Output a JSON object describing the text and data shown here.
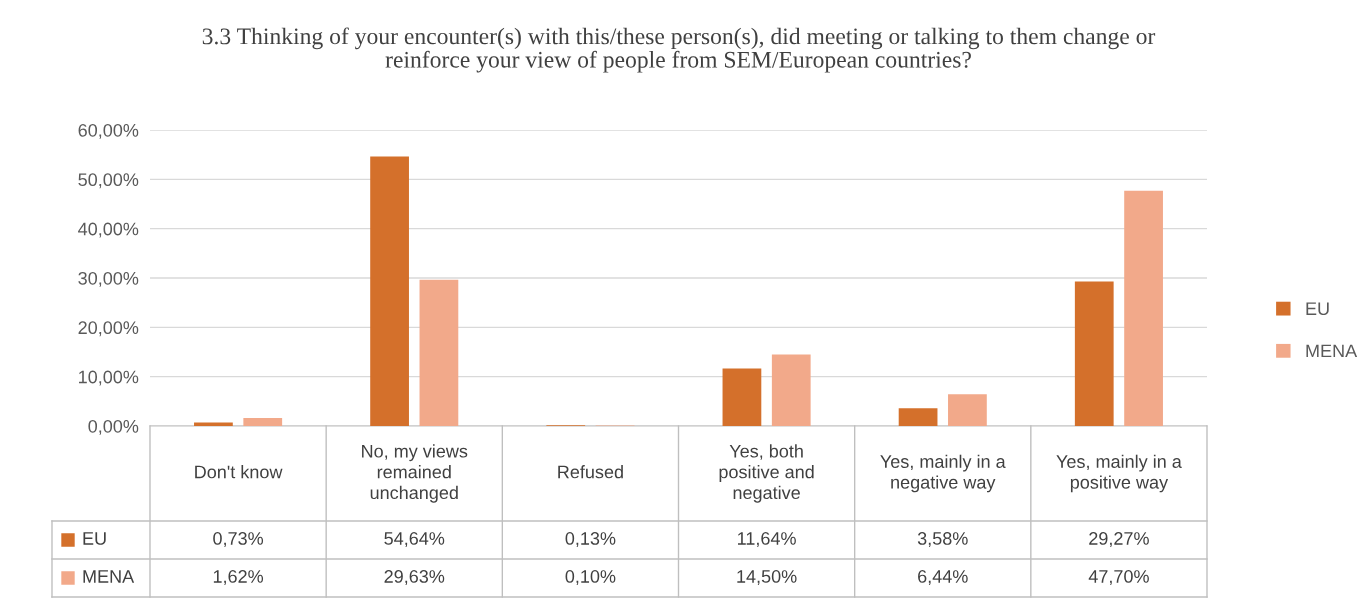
{
  "chart_data": {
    "type": "bar",
    "title": "3.3 Thinking of your encounter(s) with this/these person(s), did meeting or talking to them change or reinforce your view of people from SEM/European countries?",
    "categories": [
      "Don't know",
      "No, my views remained unchanged",
      "Refused",
      "Yes, both positive and negative",
      "Yes, mainly in a negative way",
      "Yes, mainly in a positive way"
    ],
    "series": [
      {
        "name": "EU",
        "color": "#d4702b",
        "values": [
          0.73,
          54.64,
          0.13,
          11.64,
          3.58,
          29.27
        ],
        "value_labels": [
          "0,73%",
          "54,64%",
          "0,13%",
          "11,64%",
          "3,58%",
          "29,27%"
        ]
      },
      {
        "name": "MENA",
        "color": "#f2a98a",
        "values": [
          1.62,
          29.63,
          0.1,
          14.5,
          6.44,
          47.7
        ],
        "value_labels": [
          "1,62%",
          "29,63%",
          "0,10%",
          "14,50%",
          "6,44%",
          "47,70%"
        ]
      }
    ],
    "ylim": [
      0,
      60
    ],
    "yticks": [
      {
        "value": 0,
        "label": "0,00%"
      },
      {
        "value": 10,
        "label": "10,00%"
      },
      {
        "value": 20,
        "label": "20,00%"
      },
      {
        "value": 30,
        "label": "30,00%"
      },
      {
        "value": 40,
        "label": "40,00%"
      },
      {
        "value": 50,
        "label": "50,00%"
      },
      {
        "value": 60,
        "label": "60,00%"
      }
    ],
    "grid": "y",
    "legend": "right"
  }
}
